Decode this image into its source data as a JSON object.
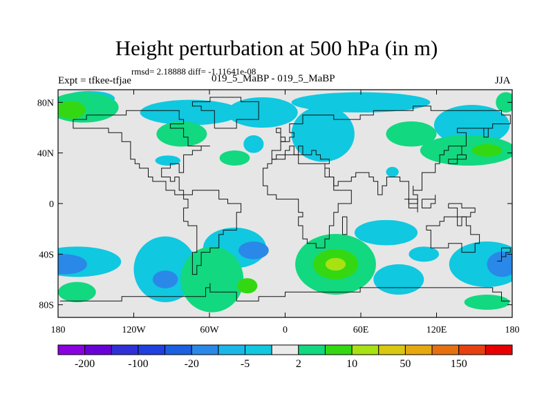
{
  "title": "Height perturbation at 500 hPa (in m)",
  "stats": "rmsd= 2.18888 diff= -1.11641e-08",
  "experiment": "Expt = tfkee-tfjae",
  "run": "019_5_MaBP - 019_5_MaBP",
  "season": "JJA",
  "map": {
    "projection": "cylindrical equidistant",
    "lon_range": [
      -180,
      180
    ],
    "lat_range": [
      -90,
      90
    ],
    "background_color": "#e6e6e6",
    "y_ticks": [
      {
        "value": 80,
        "label": "80N"
      },
      {
        "value": 40,
        "label": "40N"
      },
      {
        "value": 0,
        "label": "0"
      },
      {
        "value": -40,
        "label": "40S"
      },
      {
        "value": -80,
        "label": "80S"
      }
    ],
    "x_ticks": [
      {
        "value": -180,
        "label": "180"
      },
      {
        "value": -120,
        "label": "120W"
      },
      {
        "value": -60,
        "label": "60W"
      },
      {
        "value": 0,
        "label": "0"
      },
      {
        "value": 60,
        "label": "60E"
      },
      {
        "value": 120,
        "label": "120E"
      },
      {
        "value": 180,
        "label": "180"
      }
    ]
  },
  "colorbar": {
    "colors": [
      "#8a00e0",
      "#6a00d8",
      "#3030d8",
      "#2040e0",
      "#1a60e0",
      "#2a88e8",
      "#1ab8e8",
      "#10c8e0",
      "#ebebeb",
      "#12d880",
      "#34d812",
      "#a8e212",
      "#d8c810",
      "#e6a810",
      "#e67010",
      "#e84010",
      "#e80000"
    ],
    "labels": [
      {
        "after_box": 1,
        "text": "-200"
      },
      {
        "after_box": 3,
        "text": "-100"
      },
      {
        "after_box": 5,
        "text": "-20"
      },
      {
        "after_box": 7,
        "text": "-5"
      },
      {
        "after_box": 9,
        "text": "2"
      },
      {
        "after_box": 11,
        "text": "10"
      },
      {
        "after_box": 13,
        "text": "50"
      },
      {
        "after_box": 15,
        "text": "150"
      }
    ]
  },
  "regions": [
    {
      "level": "blue",
      "color": "#10c8e0",
      "lon": -155,
      "lat": 83,
      "rlon": 20,
      "rlat": 6
    },
    {
      "level": "blue",
      "color": "#10c8e0",
      "lon": -75,
      "lat": 72,
      "rlon": 40,
      "rlat": 10
    },
    {
      "level": "blue",
      "color": "#10c8e0",
      "lon": -18,
      "lat": 72,
      "rlon": 28,
      "rlat": 12
    },
    {
      "level": "blue",
      "color": "#10c8e0",
      "lon": -25,
      "lat": 47,
      "rlon": 8,
      "rlat": 7
    },
    {
      "level": "blue",
      "color": "#10c8e0",
      "lon": -93,
      "lat": 34,
      "rlon": 10,
      "rlat": 4
    },
    {
      "level": "blue",
      "color": "#10c8e0",
      "lon": 60,
      "lat": 80,
      "rlon": 55,
      "rlat": 8
    },
    {
      "level": "blue",
      "color": "#10c8e0",
      "lon": 30,
      "lat": 55,
      "rlon": 25,
      "rlat": 22
    },
    {
      "level": "blue",
      "color": "#10c8e0",
      "lon": 148,
      "lat": 62,
      "rlon": 30,
      "rlat": 16
    },
    {
      "level": "blue",
      "color": "#10c8e0",
      "lon": 85,
      "lat": 25,
      "rlon": 5,
      "rlat": 4
    },
    {
      "level": "blue",
      "color": "#10c8e0",
      "lon": -165,
      "lat": -46,
      "rlon": 35,
      "rlat": 12
    },
    {
      "level": "blue",
      "color": "#10c8e0",
      "lon": -95,
      "lat": -52,
      "rlon": 25,
      "rlat": 26
    },
    {
      "level": "blue",
      "color": "#10c8e0",
      "lon": -40,
      "lat": -35,
      "rlon": 25,
      "rlat": 16
    },
    {
      "level": "blue",
      "color": "#10c8e0",
      "lon": 80,
      "lat": -23,
      "rlon": 25,
      "rlat": 10
    },
    {
      "level": "blue",
      "color": "#10c8e0",
      "lon": 90,
      "lat": -60,
      "rlon": 20,
      "rlat": 12
    },
    {
      "level": "blue",
      "color": "#10c8e0",
      "lon": 160,
      "lat": -48,
      "rlon": 30,
      "rlat": 18
    },
    {
      "level": "blue",
      "color": "#10c8e0",
      "lon": 110,
      "lat": -40,
      "rlon": 12,
      "rlat": 6
    },
    {
      "level": "blue2",
      "color": "#2a88e8",
      "lon": -175,
      "lat": -48,
      "rlon": 18,
      "rlat": 8
    },
    {
      "level": "blue2",
      "color": "#2a88e8",
      "lon": -95,
      "lat": -60,
      "rlon": 10,
      "rlat": 7
    },
    {
      "level": "blue2",
      "color": "#2a88e8",
      "lon": -25,
      "lat": -37,
      "rlon": 12,
      "rlat": 7
    },
    {
      "level": "blue2",
      "color": "#2a88e8",
      "lon": 172,
      "lat": -48,
      "rlon": 12,
      "rlat": 10
    },
    {
      "level": "green",
      "color": "#12d880",
      "lon": -160,
      "lat": 76,
      "rlon": 28,
      "rlat": 12
    },
    {
      "level": "green",
      "color": "#12d880",
      "lon": -82,
      "lat": 55,
      "rlon": 20,
      "rlat": 10
    },
    {
      "level": "green",
      "color": "#12d880",
      "lon": -40,
      "lat": 36,
      "rlon": 12,
      "rlat": 6
    },
    {
      "level": "green",
      "color": "#12d880",
      "lon": 100,
      "lat": 55,
      "rlon": 20,
      "rlat": 10
    },
    {
      "level": "green",
      "color": "#12d880",
      "lon": 145,
      "lat": 42,
      "rlon": 38,
      "rlat": 12
    },
    {
      "level": "green",
      "color": "#12d880",
      "lon": 175,
      "lat": 80,
      "rlon": 8,
      "rlat": 8
    },
    {
      "level": "green",
      "color": "#12d880",
      "lon": -165,
      "lat": -70,
      "rlon": 15,
      "rlat": 8
    },
    {
      "level": "green",
      "color": "#12d880",
      "lon": -58,
      "lat": -60,
      "rlon": 25,
      "rlat": 26
    },
    {
      "level": "green",
      "color": "#12d880",
      "lon": 40,
      "lat": -48,
      "rlon": 32,
      "rlat": 24
    },
    {
      "level": "green",
      "color": "#12d880",
      "lon": 160,
      "lat": -78,
      "rlon": 18,
      "rlat": 6
    },
    {
      "level": "green2",
      "color": "#34d812",
      "lon": -170,
      "lat": 74,
      "rlon": 12,
      "rlat": 7
    },
    {
      "level": "green2",
      "color": "#34d812",
      "lon": 40,
      "lat": -48,
      "rlon": 18,
      "rlat": 12
    },
    {
      "level": "green2",
      "color": "#34d812",
      "lon": -30,
      "lat": -65,
      "rlon": 8,
      "rlat": 6
    },
    {
      "level": "green2",
      "color": "#34d812",
      "lon": 160,
      "lat": 42,
      "rlon": 12,
      "rlat": 5
    },
    {
      "level": "green3",
      "color": "#a8e212",
      "lon": 40,
      "lat": -48,
      "rlon": 8,
      "rlat": 5
    }
  ]
}
